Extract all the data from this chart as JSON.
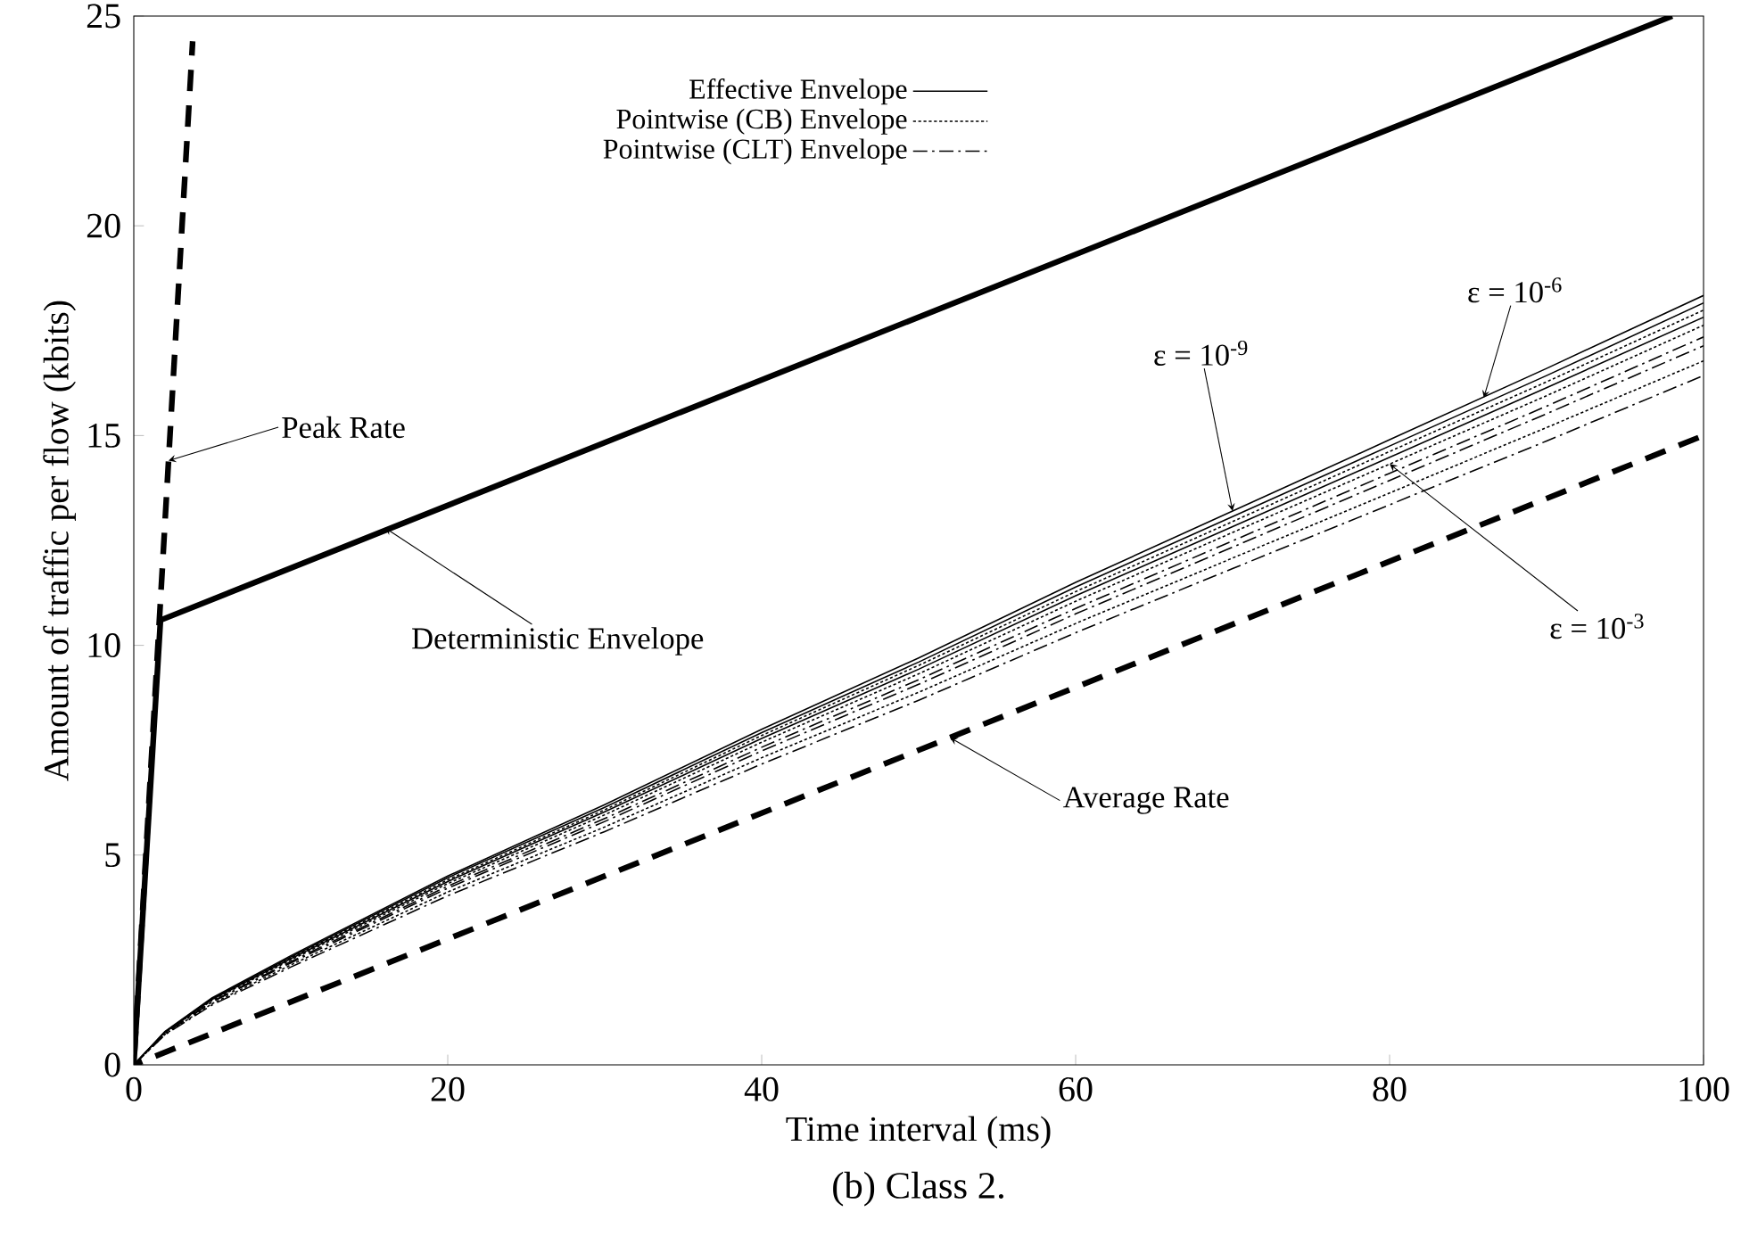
{
  "chart_data": {
    "type": "line",
    "xlabel": "Time interval (ms)",
    "ylabel": "Amount of traffic per flow (kbits)",
    "xlim": [
      0,
      100
    ],
    "ylim": [
      0,
      25
    ],
    "xticks": [
      0,
      20,
      40,
      60,
      80,
      100
    ],
    "yticks": [
      0,
      5,
      10,
      15,
      20,
      25
    ],
    "grid": false,
    "legend": "top",
    "series": [
      {
        "name": "Effective Envelope",
        "color": "#000000",
        "line_style": "solid",
        "x": [
          0,
          2,
          5,
          10,
          20,
          30,
          40,
          50,
          60,
          70,
          80,
          90,
          100
        ],
        "values": [
          0,
          0.8,
          1.6,
          2.6,
          4.5,
          6.2,
          8.0,
          9.7,
          11.5,
          13.2,
          14.9,
          16.6,
          18.34
        ]
      },
      {
        "color": "#000000",
        "line_style": "solid",
        "x": [
          0,
          2,
          5,
          10,
          20,
          30,
          40,
          50,
          60,
          70,
          80,
          90,
          100
        ],
        "values": [
          0,
          0.79,
          1.58,
          2.57,
          4.46,
          6.14,
          7.92,
          9.6,
          11.39,
          13.07,
          14.75,
          16.43,
          18.16
        ]
      },
      {
        "name": "Pointwise (CB) Envelope",
        "color": "#000000",
        "line_style": "dotted",
        "x": [
          0,
          2,
          5,
          10,
          20,
          30,
          40,
          50,
          60,
          70,
          80,
          90,
          100
        ],
        "values": [
          0,
          0.78,
          1.57,
          2.55,
          4.41,
          6.08,
          7.85,
          9.52,
          11.28,
          12.95,
          14.62,
          16.28,
          17.99
        ]
      },
      {
        "color": "#000000",
        "line_style": "solid",
        "x": [
          0,
          2,
          5,
          10,
          20,
          30,
          40,
          50,
          60,
          70,
          80,
          90,
          100
        ],
        "values": [
          0,
          0.78,
          1.56,
          2.53,
          4.37,
          6.03,
          7.78,
          9.43,
          11.18,
          12.83,
          14.48,
          16.14,
          17.82
        ]
      },
      {
        "color": "#000000",
        "line_style": "dotted",
        "x": [
          0,
          2,
          5,
          10,
          20,
          30,
          40,
          50,
          60,
          70,
          80,
          90,
          100
        ],
        "values": [
          0,
          0.77,
          1.54,
          2.5,
          4.32,
          5.96,
          7.69,
          9.32,
          11.05,
          12.69,
          14.32,
          15.95,
          17.63
        ]
      },
      {
        "name": "Pointwise (CLT) Envelope",
        "color": "#000000",
        "line_style": "dashed",
        "x": [
          0,
          2,
          5,
          10,
          20,
          30,
          40,
          50,
          60,
          70,
          80,
          90,
          100
        ],
        "values": [
          0,
          0.76,
          1.51,
          2.46,
          4.26,
          5.87,
          7.57,
          9.18,
          10.88,
          12.49,
          14.1,
          15.7,
          17.35
        ]
      },
      {
        "color": "#000000",
        "line_style": "dashed",
        "x": [
          0,
          2,
          5,
          10,
          20,
          30,
          40,
          50,
          60,
          70,
          80,
          90,
          100
        ],
        "values": [
          0,
          0.75,
          1.5,
          2.43,
          4.21,
          5.8,
          7.48,
          9.07,
          10.75,
          12.34,
          13.93,
          15.52,
          17.14
        ]
      },
      {
        "color": "#000000",
        "line_style": "dotted",
        "x": [
          0,
          2,
          5,
          10,
          20,
          30,
          40,
          50,
          60,
          70,
          80,
          90,
          100
        ],
        "values": [
          0,
          0.73,
          1.46,
          2.38,
          4.12,
          5.67,
          7.32,
          8.88,
          10.52,
          12.08,
          13.63,
          15.19,
          16.78
        ]
      },
      {
        "color": "#000000",
        "line_style": "dashed",
        "x": [
          0,
          2,
          5,
          10,
          20,
          30,
          40,
          50,
          60,
          70,
          80,
          90,
          100
        ],
        "values": [
          0,
          0.72,
          1.43,
          2.33,
          4.03,
          5.56,
          7.17,
          8.69,
          10.3,
          11.83,
          13.35,
          14.87,
          16.43
        ]
      },
      {
        "color": "#000000",
        "line_style": "dashed",
        "x": [
          0,
          3.75
        ],
        "values": [
          0,
          24.4
        ]
      },
      {
        "color": "#000000",
        "line_style": "solid",
        "x": [
          0,
          1.7,
          98
        ],
        "values": [
          0,
          10.6,
          25
        ]
      },
      {
        "color": "#000000",
        "line_style": "dashed",
        "x": [
          0,
          100
        ],
        "values": [
          0,
          15
        ]
      }
    ],
    "annotations": [
      {
        "text": "Peak Rate",
        "x": 2.21,
        "y": 14.4
      },
      {
        "text": "Deterministic Envelope",
        "x": 16,
        "y": 12.8
      },
      {
        "text": "Average Rate",
        "x": 52,
        "y": 7.8
      },
      {
        "text": "ε = 10$^{-9}$",
        "x": 70,
        "y": 13.2
      },
      {
        "text": "ε = 10$^{-6}$",
        "x": 86,
        "y": 15.9
      },
      {
        "text": "ε = 10$^{-3}$",
        "x": 80,
        "y": 14.32
      },
      "(b) Class 2."
    ]
  }
}
